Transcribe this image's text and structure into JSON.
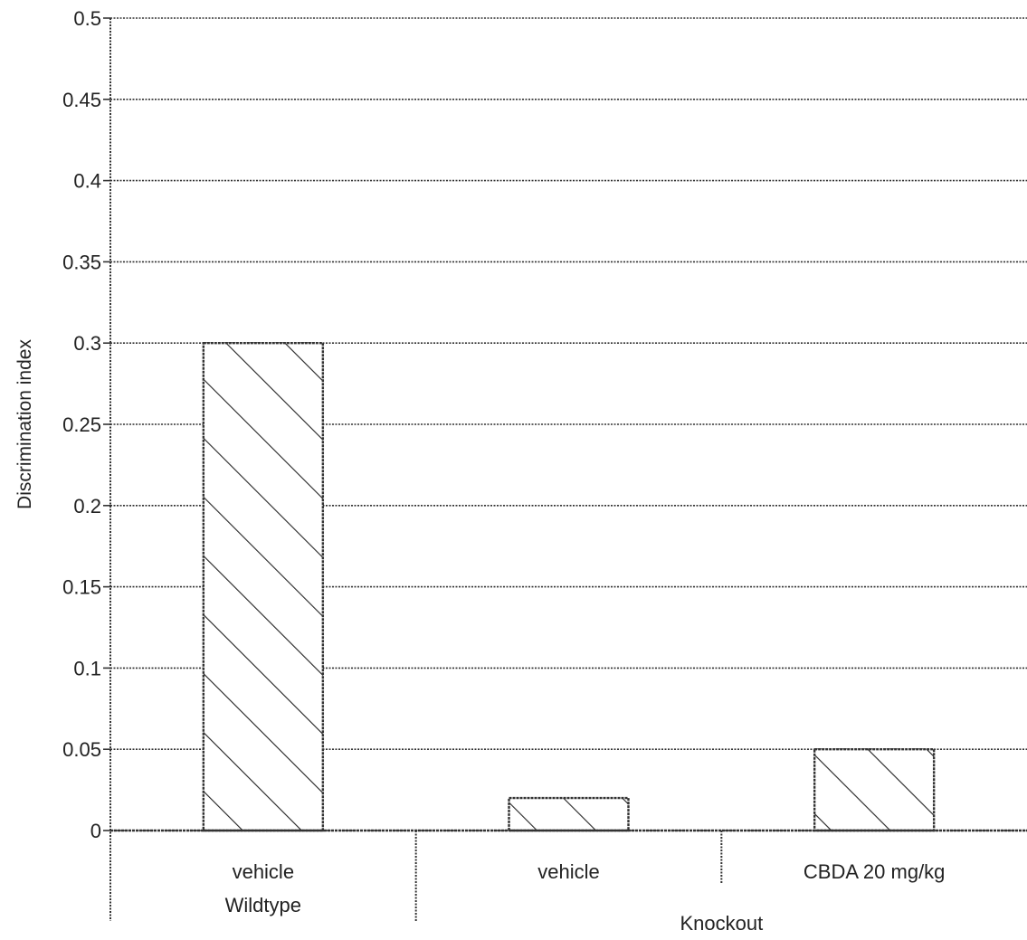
{
  "chart_data": {
    "type": "bar",
    "xlabel": "",
    "ylabel": "Discrimination index",
    "ylim": [
      0,
      0.5
    ],
    "yticks": [
      "0",
      "0.05",
      "0.1",
      "0.15",
      "0.2",
      "0.25",
      "0.3",
      "0.35",
      "0.4",
      "0.45",
      "0.5"
    ],
    "categories": [
      {
        "treatment": "vehicle",
        "group": "Wildtype"
      },
      {
        "treatment": "vehicle",
        "group": "Knockout"
      },
      {
        "treatment": "CBDA 20 mg/kg",
        "group": "Knockout"
      }
    ],
    "groups": [
      "Wildtype",
      "Knockout"
    ],
    "values": [
      0.3,
      0.02,
      0.05
    ],
    "grid": true,
    "bar_fill": "diagonal-hatch",
    "colors": {
      "bar_stroke": "#333333",
      "grid": "#333333",
      "hatch": "#222222"
    }
  }
}
